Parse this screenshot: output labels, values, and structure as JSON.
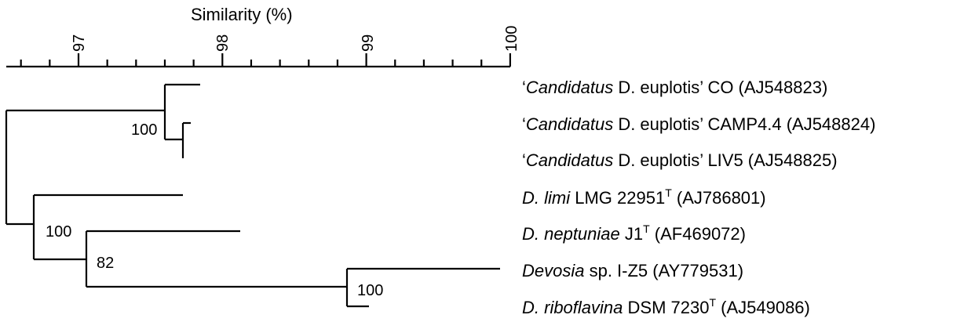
{
  "axis": {
    "title": "Similarity (%)",
    "major_ticks": [
      97,
      98,
      99,
      100
    ],
    "tick_labels": [
      "97",
      "98",
      "99",
      "100"
    ],
    "minor_tick_step": 0.2,
    "range": [
      96.5,
      100
    ]
  },
  "bootstrap_labels": [
    "100",
    "100",
    "82",
    "100"
  ],
  "leaves": [
    {
      "q1": "‘",
      "italic": "Candidatus",
      "rest": " D. euplotis’ CO (AJ548823)",
      "sup": ""
    },
    {
      "q1": "‘",
      "italic": "Candidatus",
      "rest": " D. euplotis’ CAMP4.4 (AJ548824)",
      "sup": ""
    },
    {
      "q1": "‘",
      "italic": "Candidatus",
      "rest": " D. euplotis’ LIV5 (AJ548825)",
      "sup": ""
    },
    {
      "q1": "",
      "italic": "D. limi",
      "rest": " LMG 22951",
      "sup": "T",
      "tail": " (AJ786801)"
    },
    {
      "q1": "",
      "italic": "D. neptuniae",
      "rest": " J1",
      "sup": "T",
      "tail": " (AF469072)"
    },
    {
      "q1": "",
      "italic": "Devosia",
      "rest": " sp. I-Z5 (AY779531)",
      "sup": ""
    },
    {
      "q1": "",
      "italic": "D. riboflavina",
      "rest": " DSM 7230",
      "sup": "T",
      "tail": " (AJ549086)"
    }
  ]
}
